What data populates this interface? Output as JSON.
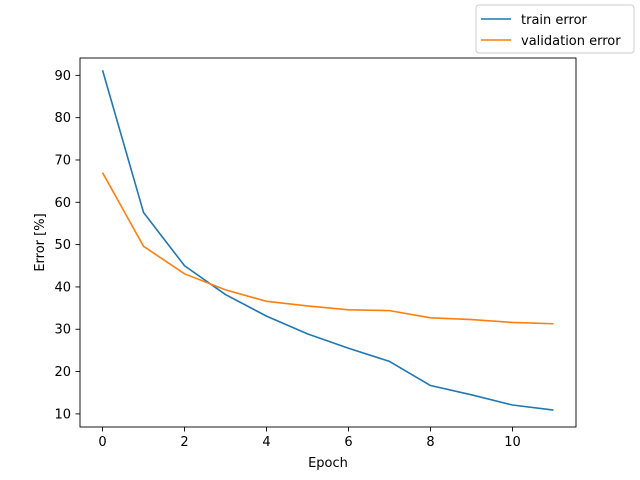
{
  "chart_data": {
    "type": "line",
    "xlabel": "Epoch",
    "ylabel": "Error [%]",
    "xlim": [
      -0.55,
      11.55
    ],
    "ylim": [
      6.9,
      94.1
    ],
    "xticks": [
      0,
      2,
      4,
      6,
      8,
      10
    ],
    "yticks": [
      10,
      20,
      30,
      40,
      50,
      60,
      70,
      80,
      90
    ],
    "grid": false,
    "legend_position": "top-right, outside plot",
    "x": [
      0,
      1,
      2,
      3,
      4,
      5,
      6,
      7,
      8,
      9,
      10,
      11
    ],
    "series": [
      {
        "name": "train error",
        "color": "#1f77b4",
        "values": [
          91.2,
          57.6,
          45.0,
          38.2,
          33.1,
          28.9,
          25.5,
          22.4,
          16.7,
          14.5,
          12.1,
          10.9
        ]
      },
      {
        "name": "validation error",
        "color": "#ff7f0e",
        "values": [
          67.0,
          49.6,
          43.1,
          39.3,
          36.6,
          35.5,
          34.6,
          34.4,
          32.7,
          32.3,
          31.6,
          31.3
        ]
      }
    ]
  }
}
